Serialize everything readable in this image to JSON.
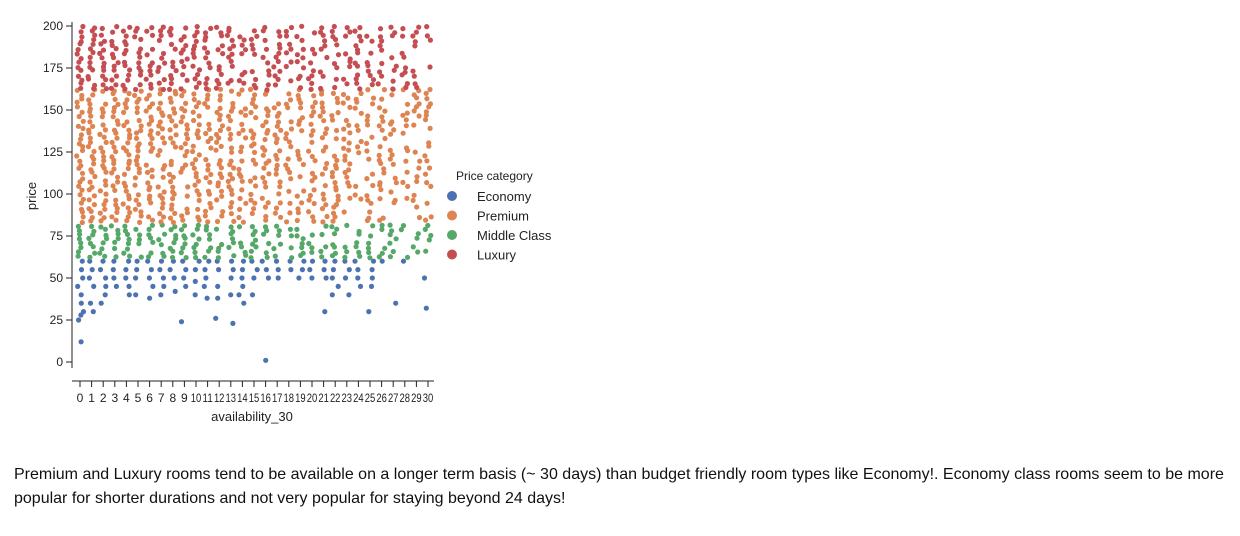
{
  "chart_data": {
    "type": "scatter",
    "xlabel": "availability_30",
    "ylabel": "price",
    "x_ticks": [
      0,
      1,
      2,
      3,
      4,
      5,
      6,
      7,
      8,
      9,
      10,
      11,
      12,
      13,
      14,
      15,
      16,
      17,
      18,
      19,
      20,
      21,
      22,
      23,
      24,
      25,
      26,
      27,
      28,
      29,
      30
    ],
    "y_ticks": [
      0,
      25,
      50,
      75,
      100,
      125,
      150,
      175,
      200
    ],
    "xlim": [
      0,
      30
    ],
    "ylim": [
      0,
      200
    ],
    "grid": false,
    "legend": {
      "title": "Price category",
      "placement": "right",
      "entries": [
        {
          "name": "Economy",
          "color": "#4c72b0"
        },
        {
          "name": "Premium",
          "color": "#dd8452"
        },
        {
          "name": "Middle Class",
          "color": "#55a868"
        },
        {
          "name": "Luxury",
          "color": "#c44e52"
        }
      ]
    },
    "series": [
      {
        "name": "Economy",
        "color": "#4c72b0",
        "price_range": [
          0,
          61
        ],
        "points": [
          [
            0,
            12
          ],
          [
            0,
            25
          ],
          [
            0,
            28
          ],
          [
            0,
            30
          ],
          [
            0,
            35
          ],
          [
            0,
            40
          ],
          [
            0,
            45
          ],
          [
            0,
            50
          ],
          [
            0,
            55
          ],
          [
            0,
            60
          ],
          [
            1,
            30
          ],
          [
            1,
            35
          ],
          [
            1,
            45
          ],
          [
            1,
            50
          ],
          [
            1,
            55
          ],
          [
            1,
            60
          ],
          [
            2,
            35
          ],
          [
            2,
            40
          ],
          [
            2,
            45
          ],
          [
            2,
            50
          ],
          [
            2,
            55
          ],
          [
            2,
            60
          ],
          [
            3,
            45
          ],
          [
            3,
            50
          ],
          [
            3,
            55
          ],
          [
            3,
            60
          ],
          [
            4,
            40
          ],
          [
            4,
            45
          ],
          [
            4,
            50
          ],
          [
            4,
            55
          ],
          [
            4,
            60
          ],
          [
            5,
            40
          ],
          [
            5,
            50
          ],
          [
            5,
            55
          ],
          [
            5,
            60
          ],
          [
            6,
            38
          ],
          [
            6,
            45
          ],
          [
            6,
            50
          ],
          [
            6,
            55
          ],
          [
            6,
            60
          ],
          [
            7,
            40
          ],
          [
            7,
            45
          ],
          [
            7,
            50
          ],
          [
            7,
            55
          ],
          [
            7,
            60
          ],
          [
            8,
            42
          ],
          [
            8,
            50
          ],
          [
            8,
            55
          ],
          [
            8,
            60
          ],
          [
            9,
            24
          ],
          [
            9,
            45
          ],
          [
            9,
            50
          ],
          [
            9,
            55
          ],
          [
            9,
            60
          ],
          [
            10,
            40
          ],
          [
            10,
            48
          ],
          [
            10,
            55
          ],
          [
            10,
            60
          ],
          [
            11,
            38
          ],
          [
            11,
            45
          ],
          [
            11,
            50
          ],
          [
            11,
            55
          ],
          [
            11,
            60
          ],
          [
            12,
            26
          ],
          [
            12,
            38
          ],
          [
            12,
            45
          ],
          [
            12,
            55
          ],
          [
            12,
            60
          ],
          [
            13,
            23
          ],
          [
            13,
            40
          ],
          [
            13,
            50
          ],
          [
            13,
            55
          ],
          [
            13,
            60
          ],
          [
            14,
            35
          ],
          [
            14,
            40
          ],
          [
            14,
            45
          ],
          [
            14,
            50
          ],
          [
            14,
            55
          ],
          [
            14,
            60
          ],
          [
            15,
            40
          ],
          [
            15,
            50
          ],
          [
            15,
            55
          ],
          [
            15,
            60
          ],
          [
            16,
            1
          ],
          [
            16,
            50
          ],
          [
            16,
            55
          ],
          [
            16,
            60
          ],
          [
            17,
            50
          ],
          [
            17,
            55
          ],
          [
            17,
            60
          ],
          [
            18,
            55
          ],
          [
            18,
            60
          ],
          [
            19,
            50
          ],
          [
            19,
            55
          ],
          [
            19,
            60
          ],
          [
            20,
            50
          ],
          [
            20,
            55
          ],
          [
            20,
            60
          ],
          [
            21,
            30
          ],
          [
            21,
            50
          ],
          [
            21,
            55
          ],
          [
            21,
            60
          ],
          [
            22,
            40
          ],
          [
            22,
            45
          ],
          [
            22,
            50
          ],
          [
            22,
            55
          ],
          [
            22,
            60
          ],
          [
            23,
            40
          ],
          [
            23,
            50
          ],
          [
            23,
            55
          ],
          [
            23,
            60
          ],
          [
            24,
            45
          ],
          [
            24,
            50
          ],
          [
            24,
            55
          ],
          [
            24,
            60
          ],
          [
            25,
            30
          ],
          [
            25,
            45
          ],
          [
            25,
            50
          ],
          [
            25,
            55
          ],
          [
            25,
            60
          ],
          [
            26,
            60
          ],
          [
            27,
            35
          ],
          [
            28,
            60
          ],
          [
            30,
            50
          ],
          [
            30,
            32
          ]
        ]
      },
      {
        "name": "Middle Class",
        "color": "#55a868",
        "price_range": [
          62,
          82
        ]
      },
      {
        "name": "Premium",
        "color": "#dd8452",
        "price_range": [
          83,
          161
        ]
      },
      {
        "name": "Luxury",
        "color": "#c44e52",
        "price_range": [
          162,
          200
        ]
      }
    ]
  },
  "caption": "Premium and Luxury rooms tend to be available on a longer term basis (~ 30 days) than budget friendly room types like Economy!. Economy class rooms seem to be more popular for shorter durations and not very popular for staying beyond 24 days!"
}
